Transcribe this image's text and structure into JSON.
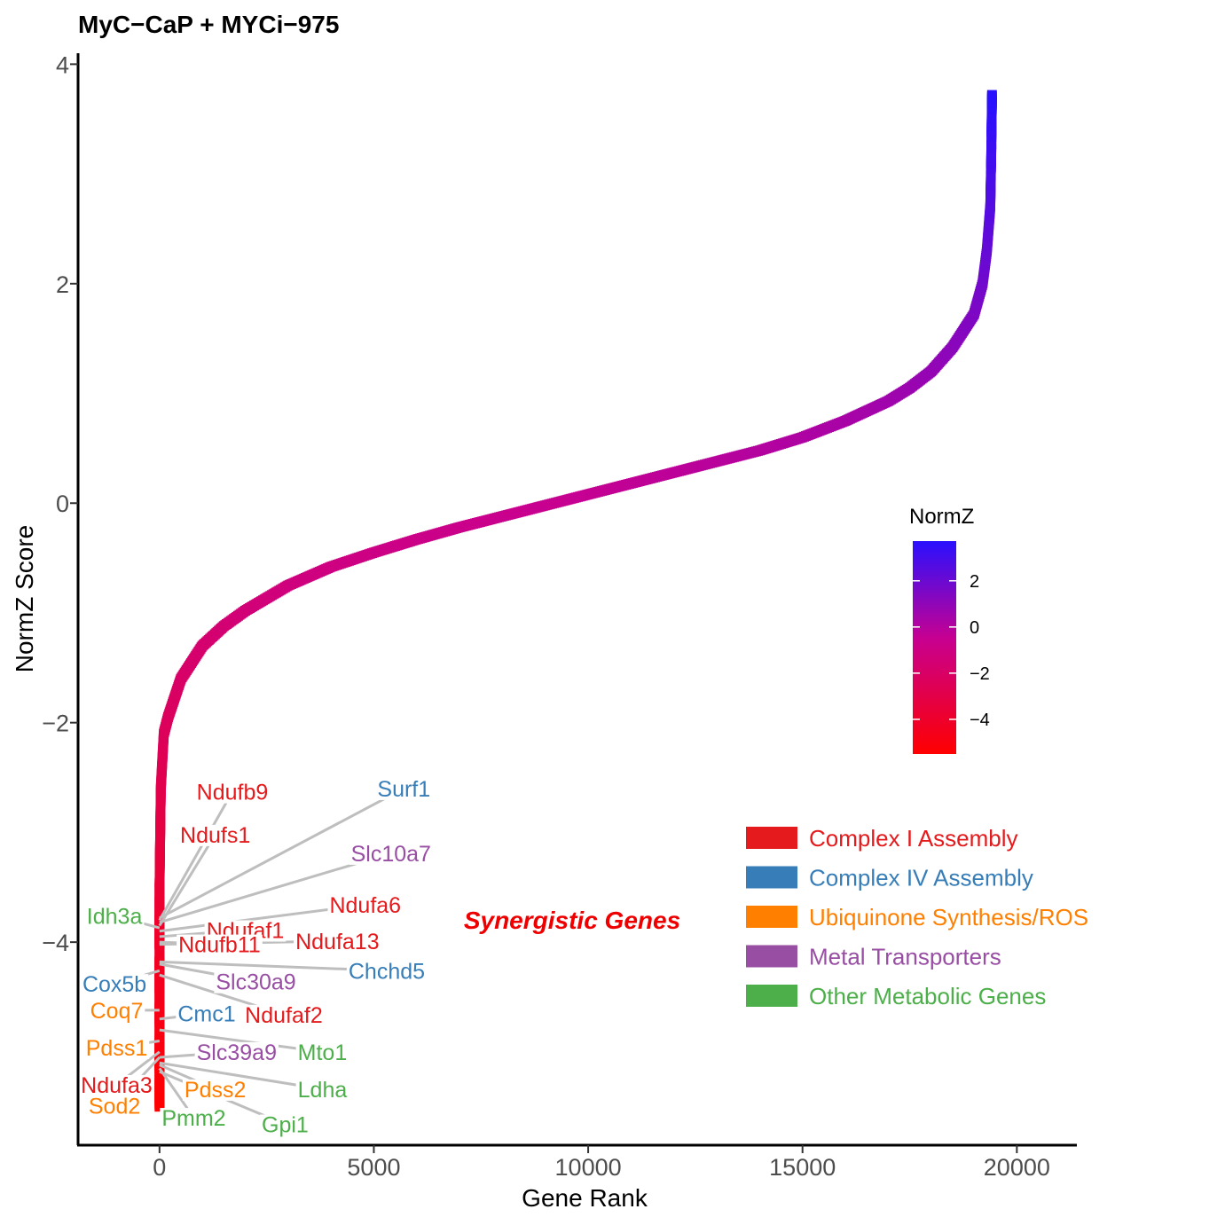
{
  "chart_data": {
    "type": "scatter",
    "title": "MyC−CaP + MYCi−975",
    "xlabel": "Gene Rank",
    "ylabel": "NormZ Score",
    "xlim": [
      -1900,
      21400
    ],
    "ylim": [
      -5.85,
      4.1
    ],
    "x_ticks": [
      0,
      5000,
      10000,
      15000,
      20000
    ],
    "x_tick_labels": [
      "0",
      "5000",
      "10000",
      "15000",
      "20000"
    ],
    "y_ticks": [
      -4,
      -2,
      0,
      2,
      4
    ],
    "y_tick_labels": [
      "−4",
      "−2",
      "0",
      "2",
      "4"
    ],
    "grid": false,
    "n_genes": 19400,
    "curve": [
      {
        "rank": 0,
        "normz": -5.5
      },
      {
        "rank": 0,
        "normz": -3.5
      },
      {
        "rank": 10,
        "normz": -3.2
      },
      {
        "rank": 30,
        "normz": -2.6
      },
      {
        "rank": 100,
        "normz": -2.1
      },
      {
        "rank": 200,
        "normz": -1.95
      },
      {
        "rank": 500,
        "normz": -1.6
      },
      {
        "rank": 1000,
        "normz": -1.3
      },
      {
        "rank": 1500,
        "normz": -1.12
      },
      {
        "rank": 2000,
        "normz": -0.98
      },
      {
        "rank": 3000,
        "normz": -0.75
      },
      {
        "rank": 4000,
        "normz": -0.58
      },
      {
        "rank": 5000,
        "normz": -0.45
      },
      {
        "rank": 6000,
        "normz": -0.33
      },
      {
        "rank": 7000,
        "normz": -0.22
      },
      {
        "rank": 8000,
        "normz": -0.12
      },
      {
        "rank": 9000,
        "normz": -0.02
      },
      {
        "rank": 10000,
        "normz": 0.08
      },
      {
        "rank": 11000,
        "normz": 0.18
      },
      {
        "rank": 12000,
        "normz": 0.28
      },
      {
        "rank": 13000,
        "normz": 0.38
      },
      {
        "rank": 14000,
        "normz": 0.48
      },
      {
        "rank": 15000,
        "normz": 0.6
      },
      {
        "rank": 16000,
        "normz": 0.75
      },
      {
        "rank": 17000,
        "normz": 0.93
      },
      {
        "rank": 17500,
        "normz": 1.05
      },
      {
        "rank": 18000,
        "normz": 1.2
      },
      {
        "rank": 18500,
        "normz": 1.42
      },
      {
        "rank": 19000,
        "normz": 1.72
      },
      {
        "rank": 19200,
        "normz": 2.0
      },
      {
        "rank": 19300,
        "normz": 2.3
      },
      {
        "rank": 19380,
        "normz": 2.7
      },
      {
        "rank": 19400,
        "normz": 3.1
      },
      {
        "rank": 19420,
        "normz": 3.72
      }
    ],
    "color_scale": {
      "title": "NormZ",
      "low_color": "#ff0000",
      "mid_color": "#c80090",
      "high_color": "#2a10ff",
      "range": [
        -5.5,
        3.72
      ],
      "ticks": [
        2,
        0,
        -2,
        -4
      ],
      "tick_labels": [
        "2",
        "0",
        "−2",
        "−4"
      ]
    },
    "annotation": {
      "text": "Synergistic Genes",
      "color": "#ee0000"
    },
    "categories": [
      {
        "name": "Complex I Assembly",
        "color": "#e41a1c"
      },
      {
        "name": "Complex IV Assembly",
        "color": "#377eb8"
      },
      {
        "name": "Ubiquinone Synthesis/ROS",
        "color": "#ff7f00"
      },
      {
        "name": "Metal Transporters",
        "color": "#984ea3"
      },
      {
        "name": "Other Metabolic Genes",
        "color": "#4daf4a"
      }
    ],
    "genes": [
      {
        "name": "Ndufb9",
        "category": 0,
        "normz": -3.8,
        "label_rank": 1700,
        "label_normz": -2.63
      },
      {
        "name": "Surf1",
        "category": 1,
        "normz": -3.78,
        "label_rank": 5700,
        "label_normz": -2.6
      },
      {
        "name": "Ndufs1",
        "category": 0,
        "normz": -3.85,
        "label_rank": 1300,
        "label_normz": -3.02
      },
      {
        "name": "Slc10a7",
        "category": 3,
        "normz": -3.82,
        "label_rank": 5400,
        "label_normz": -3.19
      },
      {
        "name": "Idh3a",
        "category": 4,
        "normz": -3.87,
        "label_rank": -1050,
        "label_normz": -3.76
      },
      {
        "name": "Ndufa6",
        "category": 0,
        "normz": -3.9,
        "label_rank": 4800,
        "label_normz": -3.66
      },
      {
        "name": "Ndufaf1",
        "category": 0,
        "normz": -3.95,
        "label_rank": 2000,
        "label_normz": -3.89
      },
      {
        "name": "Ndufb11",
        "category": 0,
        "normz": -4.0,
        "label_rank": 1400,
        "label_normz": -4.02
      },
      {
        "name": "Ndufa13",
        "category": 0,
        "normz": -4.02,
        "label_rank": 4150,
        "label_normz": -3.99
      },
      {
        "name": "Chchd5",
        "category": 1,
        "normz": -4.18,
        "label_rank": 5300,
        "label_normz": -4.26
      },
      {
        "name": "Slc30a9",
        "category": 3,
        "normz": -4.2,
        "label_rank": 2250,
        "label_normz": -4.36
      },
      {
        "name": "Cox5b",
        "category": 1,
        "normz": -4.26,
        "label_rank": -1050,
        "label_normz": -4.38
      },
      {
        "name": "Coq7",
        "category": 2,
        "normz": -4.62,
        "label_rank": -1000,
        "label_normz": -4.62
      },
      {
        "name": "Cmc1",
        "category": 1,
        "normz": -4.7,
        "label_rank": 1100,
        "label_normz": -4.65
      },
      {
        "name": "Ndufaf2",
        "category": 0,
        "normz": -4.3,
        "label_rank": 2900,
        "label_normz": -4.66
      },
      {
        "name": "Pdss1",
        "category": 2,
        "normz": -4.9,
        "label_rank": -1000,
        "label_normz": -4.96
      },
      {
        "name": "Mto1",
        "category": 4,
        "normz": -4.8,
        "label_rank": 3800,
        "label_normz": -5.0
      },
      {
        "name": "Slc39a9",
        "category": 3,
        "normz": -5.05,
        "label_rank": 1800,
        "label_normz": -5.0
      },
      {
        "name": "Ndufa3",
        "category": 0,
        "normz": -5.0,
        "label_rank": -1000,
        "label_normz": -5.3
      },
      {
        "name": "Ldha",
        "category": 4,
        "normz": -5.1,
        "label_rank": 3800,
        "label_normz": -5.34
      },
      {
        "name": "Pdss2",
        "category": 2,
        "normz": -5.12,
        "label_rank": 1300,
        "label_normz": -5.34
      },
      {
        "name": "Sod2",
        "category": 2,
        "normz": -5.05,
        "label_rank": -1050,
        "label_normz": -5.49
      },
      {
        "name": "Pmm2",
        "category": 4,
        "normz": -5.15,
        "label_rank": 800,
        "label_normz": -5.6
      },
      {
        "name": "Gpi1",
        "category": 4,
        "normz": -5.18,
        "label_rank": 2930,
        "label_normz": -5.66
      }
    ]
  }
}
